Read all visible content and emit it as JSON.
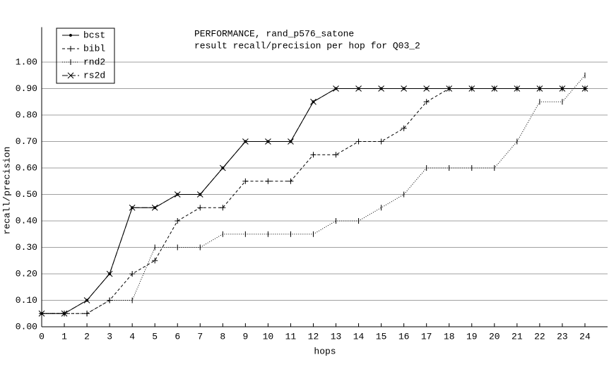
{
  "chart_data": {
    "type": "line",
    "title": "PERFORMANCE, rand_p576_satone",
    "subtitle": "result recall/precision per hop for Q03_2",
    "x_label": "hops",
    "y_label": "recall/precision",
    "x": [
      0,
      1,
      2,
      3,
      4,
      5,
      6,
      7,
      8,
      9,
      10,
      11,
      12,
      13,
      14,
      15,
      16,
      17,
      18,
      19,
      20,
      21,
      22,
      23,
      24
    ],
    "xlim": [
      0,
      25
    ],
    "xticks": [
      0,
      1,
      2,
      3,
      4,
      5,
      6,
      7,
      8,
      9,
      10,
      11,
      12,
      13,
      14,
      15,
      16,
      17,
      18,
      19,
      20,
      21,
      22,
      23,
      24
    ],
    "ylim": [
      0,
      1.1
    ],
    "yticks": [
      {
        "value": 0,
        "label": "0.00"
      },
      {
        "value": 0.1,
        "label": "0.10"
      },
      {
        "value": 0.2,
        "label": "0.20"
      },
      {
        "value": 0.3,
        "label": "0.30"
      },
      {
        "value": 0.4,
        "label": "0.40"
      },
      {
        "value": 0.5,
        "label": "0.50"
      },
      {
        "value": 0.6,
        "label": "0.60"
      },
      {
        "value": 0.7,
        "label": "0.70"
      },
      {
        "value": 0.8,
        "label": "0.80"
      },
      {
        "value": 0.9,
        "label": "0.90"
      },
      {
        "value": 1.0,
        "label": "1.00"
      }
    ],
    "grid": true,
    "legend": "top-left",
    "series": [
      {
        "name": "bcst",
        "color": "#000000",
        "dash": "none",
        "marker": "dot",
        "values": [
          0.05,
          0.05,
          0.1,
          0.2,
          0.45,
          0.45,
          0.5,
          0.5,
          0.6,
          0.7,
          0.7,
          0.7,
          0.85,
          0.9,
          0.9,
          0.9,
          0.9,
          0.9,
          0.9,
          0.9,
          0.9,
          0.9,
          0.9,
          0.9,
          0.9
        ]
      },
      {
        "name": "bibl",
        "color": "#000000",
        "dash": "4,3",
        "marker": "plus",
        "values": [
          0.05,
          0.05,
          0.05,
          0.1,
          0.2,
          0.25,
          0.4,
          0.45,
          0.45,
          0.55,
          0.55,
          0.55,
          0.65,
          0.65,
          0.7,
          0.7,
          0.75,
          0.85,
          0.9,
          0.9,
          0.9,
          0.9,
          0.9,
          0.9,
          0.9
        ]
      },
      {
        "name": "rnd2",
        "color": "#000000",
        "dash": "1,2",
        "marker": "tick",
        "values": [
          0.05,
          0.05,
          0.05,
          0.1,
          0.1,
          0.3,
          0.3,
          0.3,
          0.35,
          0.35,
          0.35,
          0.35,
          0.35,
          0.4,
          0.4,
          0.45,
          0.5,
          0.6,
          0.6,
          0.6,
          0.6,
          0.7,
          0.85,
          0.85,
          0.95
        ]
      },
      {
        "name": "rs2d",
        "color": "#000000",
        "dash": "8,3",
        "marker": "cross",
        "values": [
          0.05,
          0.05,
          0.1,
          0.2,
          0.45,
          0.45,
          0.5,
          0.5,
          0.6,
          0.7,
          0.7,
          0.7,
          0.85,
          0.9,
          0.9,
          0.9,
          0.9,
          0.9,
          0.9,
          0.9,
          0.9,
          0.9,
          0.9,
          0.9,
          0.9
        ]
      }
    ]
  }
}
